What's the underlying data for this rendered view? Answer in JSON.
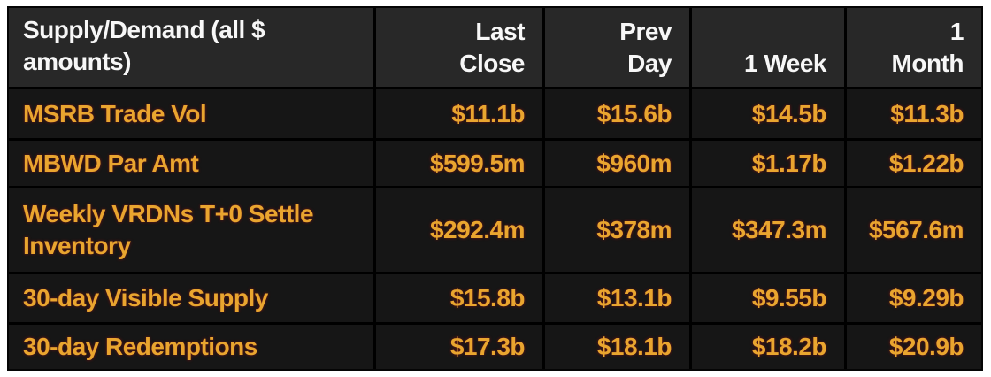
{
  "chart_data": {
    "type": "table",
    "title": "Supply/Demand (all $ amounts)",
    "layout": {
      "header_align": "right-bottom",
      "value_align": "right-center",
      "grid": "black 3px dividers between all cells"
    },
    "colors": {
      "page_bg": "#ffffff",
      "header_bg": "#282828",
      "row_bg": "#161616",
      "grid_line": "#000000",
      "header_text": "#f7f7f7",
      "data_text": "#e9a52f"
    },
    "columns": [
      "Supply/Demand (all $\namounts)",
      "Last\nClose",
      "Prev\nDay",
      "1 Week",
      "1\nMonth"
    ],
    "rows": [
      {
        "label": "MSRB Trade Vol",
        "values": [
          "$11.1b",
          "$15.6b",
          "$14.5b",
          "$11.3b"
        ]
      },
      {
        "label": "MBWD Par Amt",
        "values": [
          "$599.5m",
          "$960m",
          "$1.17b",
          "$1.22b"
        ]
      },
      {
        "label": "Weekly VRDNs T+0 Settle Inventory",
        "values": [
          "$292.4m",
          "$378m",
          "$347.3m",
          "$567.6m"
        ]
      },
      {
        "label": "30-day Visible Supply",
        "values": [
          "$15.8b",
          "$13.1b",
          "$9.55b",
          "$9.29b"
        ]
      },
      {
        "label": "30-day Redemptions",
        "values": [
          "$17.3b",
          "$18.1b",
          "$18.2b",
          "$20.9b"
        ]
      }
    ]
  }
}
